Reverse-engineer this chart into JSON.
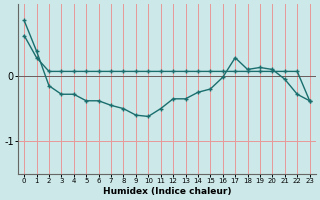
{
  "xlabel": "Humidex (Indice chaleur)",
  "ylabel": "",
  "background_color": "#cce8e8",
  "grid_color": "#e89898",
  "line_color": "#1a6e6e",
  "x_values": [
    0,
    1,
    2,
    3,
    4,
    5,
    6,
    7,
    8,
    9,
    10,
    11,
    12,
    13,
    14,
    15,
    16,
    17,
    18,
    19,
    20,
    21,
    22,
    23
  ],
  "line1_y": [
    0.62,
    0.28,
    0.07,
    0.07,
    0.07,
    0.07,
    0.07,
    0.07,
    0.07,
    0.07,
    0.07,
    0.07,
    0.07,
    0.07,
    0.07,
    0.07,
    0.07,
    0.07,
    0.07,
    0.07,
    0.07,
    0.07,
    0.07,
    -0.38
  ],
  "line2_y": [
    0.85,
    0.38,
    -0.15,
    -0.28,
    -0.28,
    -0.38,
    -0.38,
    -0.45,
    -0.5,
    -0.6,
    -0.62,
    -0.5,
    -0.35,
    -0.35,
    -0.25,
    -0.2,
    -0.02,
    0.28,
    0.1,
    0.13,
    0.1,
    -0.05,
    -0.28,
    -0.38
  ],
  "ylim": [
    -1.5,
    1.1
  ],
  "yticks": [
    0,
    -1
  ],
  "ytick_labels": [
    "0",
    "-1"
  ],
  "xlim": [
    -0.5,
    23.5
  ],
  "figsize": [
    3.2,
    2.0
  ],
  "dpi": 100
}
